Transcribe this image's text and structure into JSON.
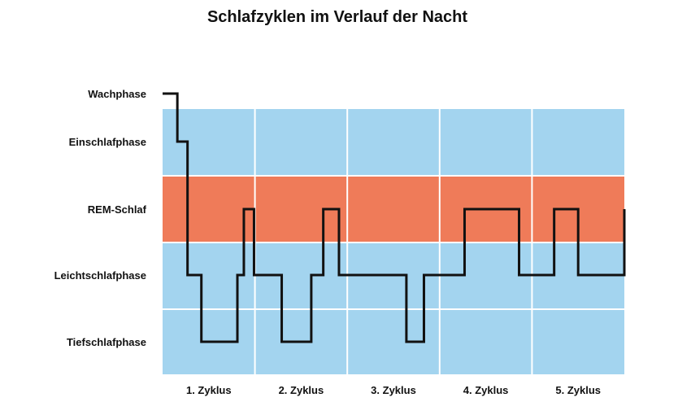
{
  "chart_data": {
    "type": "line",
    "step": true,
    "title": "Schlafzyklen im Verlauf der Nacht",
    "xlabel": "",
    "ylabel": "",
    "y_categories": [
      "Wachphase",
      "Einschlafphase",
      "REM-Schlaf",
      "Leichtschlafphase",
      "Tiefschlafphase"
    ],
    "x_categories": [
      "1. Zyklus",
      "2. Zyklus",
      "3. Zyklus",
      "4. Zyklus",
      "5. Zyklus"
    ],
    "xlim": [
      0,
      5
    ],
    "grid": true,
    "legend": "none",
    "colors": {
      "light_band": "#a3d4ef",
      "rem_band": "#ef7b59",
      "grid_line": "#ffffff",
      "line": "#111111"
    },
    "band_colors": [
      "none",
      "light_band",
      "rem_band",
      "light_band",
      "light_band"
    ],
    "series": [
      {
        "x": [
          0,
          0.16,
          0.27,
          0.42,
          0.81,
          0.88,
          0.99,
          1.06,
          1.29,
          1.61,
          1.74,
          1.91,
          2.64,
          2.83,
          3.27,
          3.86,
          4.24,
          4.5,
          5.0
        ],
        "y": [
          "Wachphase",
          "Einschlafphase",
          "Leichtschlafphase",
          "Tiefschlafphase",
          "Leichtschlafphase",
          "REM-Schlaf",
          "Leichtschlafphase",
          "Leichtschlafphase",
          "Tiefschlafphase",
          "Leichtschlafphase",
          "REM-Schlaf",
          "Leichtschlafphase",
          "Tiefschlafphase",
          "Leichtschlafphase",
          "REM-Schlaf",
          "Leichtschlafphase",
          "REM-Schlaf",
          "Leichtschlafphase",
          "REM-Schlaf"
        ]
      }
    ]
  }
}
